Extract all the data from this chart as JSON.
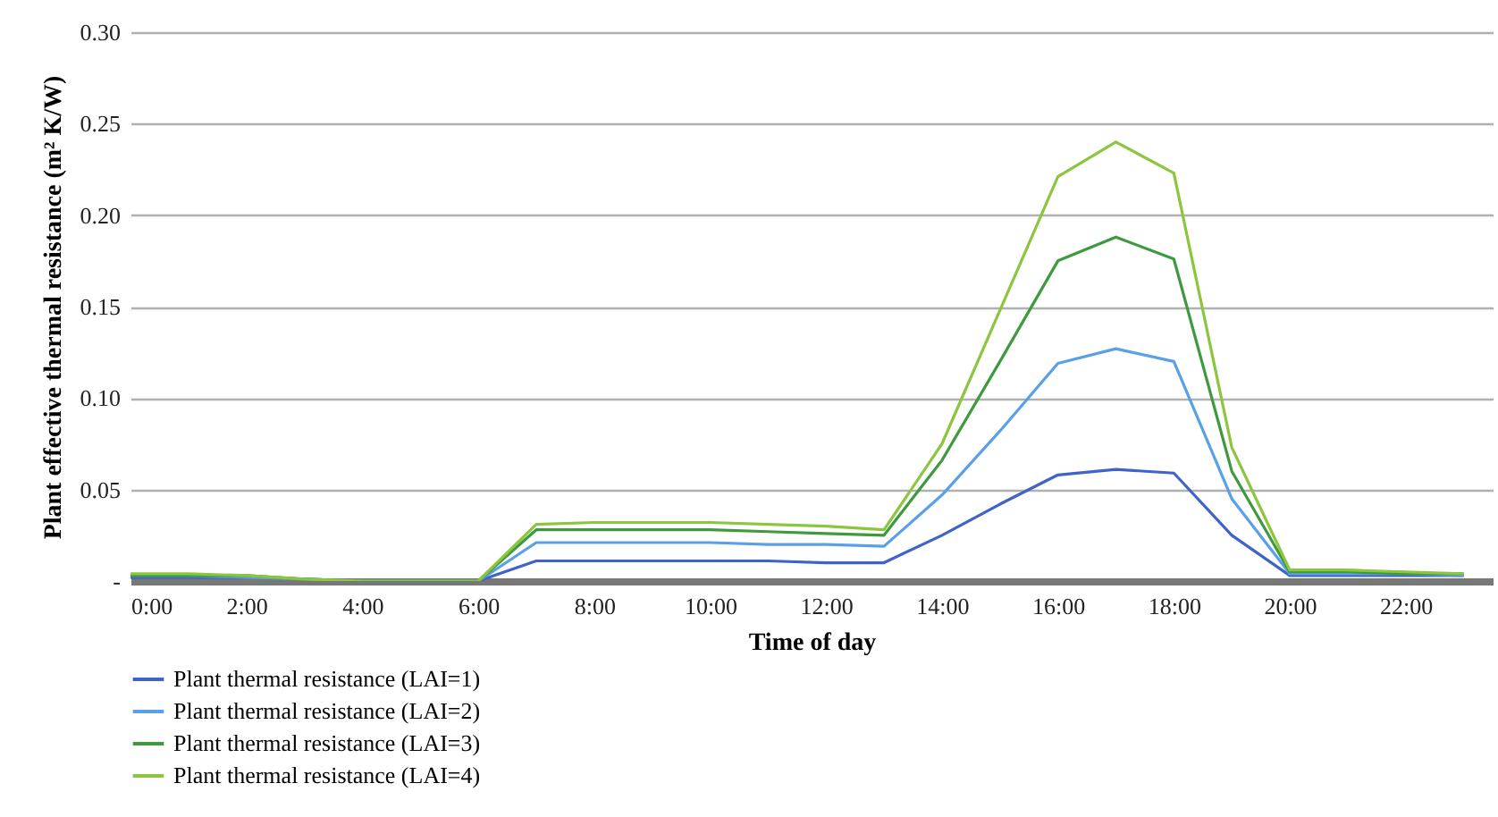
{
  "chart_data": {
    "type": "line",
    "xlabel": "Time of day",
    "ylabel": "Plant effective thermal resistance (m² K/W)",
    "x": [
      0,
      1,
      2,
      3,
      4,
      5,
      6,
      7,
      8,
      9,
      10,
      11,
      12,
      13,
      14,
      15,
      16,
      17,
      18,
      19,
      20,
      21,
      22,
      23
    ],
    "series": [
      {
        "name": "Plant thermal resistance (LAI=1)",
        "color": "#3f63c8",
        "values": [
          0.002,
          0.002,
          0.002,
          0.001,
          0,
          0,
          0,
          0.011,
          0.011,
          0.011,
          0.011,
          0.011,
          0.01,
          0.01,
          0.025,
          0.042,
          0.058,
          0.061,
          0.059,
          0.025,
          0.003,
          0.003,
          0.003,
          0.003
        ]
      },
      {
        "name": "Plant thermal resistance (LAI=2)",
        "color": "#5aa0e8",
        "values": [
          0.003,
          0.003,
          0.002,
          0.001,
          0,
          0,
          0,
          0.021,
          0.021,
          0.021,
          0.021,
          0.02,
          0.02,
          0.019,
          0.047,
          0.082,
          0.119,
          0.127,
          0.12,
          0.045,
          0.004,
          0.004,
          0.004,
          0.003
        ]
      },
      {
        "name": "Plant thermal resistance (LAI=3)",
        "color": "#3f9a3f",
        "values": [
          0.003,
          0.003,
          0.003,
          0.001,
          0,
          0,
          0,
          0.028,
          0.028,
          0.028,
          0.028,
          0.027,
          0.026,
          0.025,
          0.066,
          0.12,
          0.175,
          0.188,
          0.176,
          0.06,
          0.005,
          0.005,
          0.004,
          0.004
        ]
      },
      {
        "name": "Plant thermal resistance (LAI=4)",
        "color": "#8cc63f",
        "values": [
          0.004,
          0.004,
          0.003,
          0.001,
          0,
          0,
          0,
          0.031,
          0.032,
          0.032,
          0.032,
          0.031,
          0.03,
          0.028,
          0.075,
          0.148,
          0.221,
          0.24,
          0.223,
          0.073,
          0.006,
          0.006,
          0.005,
          0.004
        ]
      }
    ],
    "xlim": [
      0,
      23.5
    ],
    "xticks": [
      {
        "value": 0,
        "label": "0:00"
      },
      {
        "value": 2,
        "label": "2:00"
      },
      {
        "value": 4,
        "label": "4:00"
      },
      {
        "value": 6,
        "label": "6:00"
      },
      {
        "value": 8,
        "label": "8:00"
      },
      {
        "value": 10,
        "label": "10:00"
      },
      {
        "value": 12,
        "label": "12:00"
      },
      {
        "value": 14,
        "label": "14:00"
      },
      {
        "value": 16,
        "label": "16:00"
      },
      {
        "value": 18,
        "label": "18:00"
      },
      {
        "value": 20,
        "label": "20:00"
      },
      {
        "value": 22,
        "label": "22:00"
      }
    ],
    "ylim": [
      0,
      0.3
    ],
    "yticks": [
      {
        "value": 0,
        "label": "-"
      },
      {
        "value": 0.05,
        "label": "0.05"
      },
      {
        "value": 0.1,
        "label": "0.10"
      },
      {
        "value": 0.15,
        "label": "0.15"
      },
      {
        "value": 0.2,
        "label": "0.20"
      },
      {
        "value": 0.25,
        "label": "0.25"
      },
      {
        "value": 0.3,
        "label": "0.30"
      }
    ],
    "grid": "y",
    "legend": "bottom",
    "marker": "none",
    "line_style": "solid"
  }
}
